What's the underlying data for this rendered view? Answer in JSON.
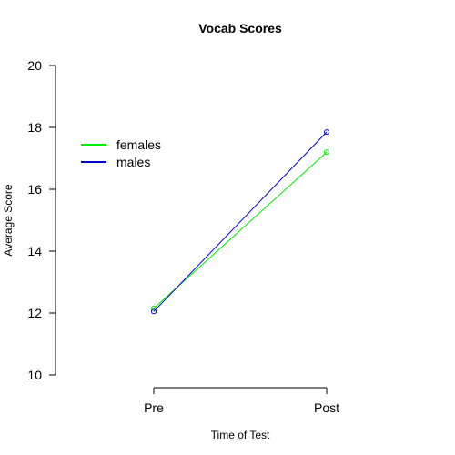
{
  "chart_data": {
    "type": "line",
    "title": "Vocab Scores",
    "xlabel": "Time of Test",
    "ylabel": "Average Score",
    "categories": [
      "Pre",
      "Post"
    ],
    "ylim": [
      10,
      20
    ],
    "yticks": [
      10,
      12,
      14,
      16,
      18,
      20
    ],
    "grid": false,
    "legend_position": "top-left",
    "series": [
      {
        "name": "females",
        "color": "#00ee00",
        "values": [
          12.15,
          17.2
        ]
      },
      {
        "name": "males",
        "color": "#0000cc",
        "values": [
          12.05,
          17.85
        ]
      }
    ]
  }
}
